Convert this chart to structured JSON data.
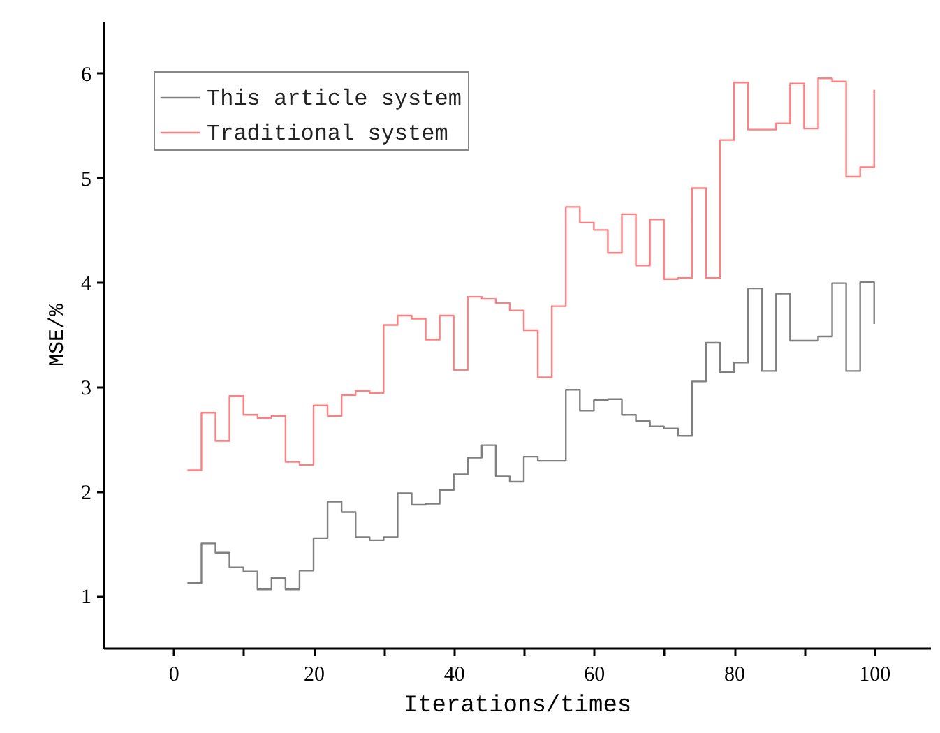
{
  "chart_data": {
    "type": "step",
    "xlabel": "Iterations/times",
    "ylabel": "MSE/%",
    "x": [
      2,
      4,
      6,
      8,
      10,
      12,
      14,
      16,
      18,
      20,
      22,
      24,
      26,
      28,
      30,
      32,
      34,
      36,
      38,
      40,
      42,
      44,
      46,
      48,
      50,
      52,
      54,
      56,
      58,
      60,
      62,
      64,
      66,
      68,
      70,
      72,
      74,
      76,
      78,
      80,
      82,
      84,
      86,
      88,
      90,
      92,
      94,
      96,
      98,
      100
    ],
    "series": [
      {
        "name": "This article system",
        "color": "#808080",
        "values": [
          1.12,
          1.5,
          1.41,
          1.27,
          1.23,
          1.06,
          1.17,
          1.06,
          1.24,
          1.55,
          1.9,
          1.8,
          1.56,
          1.53,
          1.56,
          1.98,
          1.87,
          1.88,
          2.01,
          2.16,
          2.32,
          2.44,
          2.14,
          2.09,
          2.33,
          2.29,
          2.29,
          2.97,
          2.77,
          2.87,
          2.88,
          2.73,
          2.67,
          2.62,
          2.6,
          2.53,
          3.05,
          3.42,
          3.14,
          3.23,
          3.94,
          3.15,
          3.89,
          3.44,
          3.44,
          3.48,
          3.99,
          3.15,
          4.0,
          3.6
        ]
      },
      {
        "name": "Traditional system",
        "color": "#ff8080",
        "values": [
          2.2,
          2.75,
          2.48,
          2.91,
          2.73,
          2.7,
          2.72,
          2.28,
          2.25,
          2.82,
          2.72,
          2.92,
          2.96,
          2.94,
          3.59,
          3.68,
          3.65,
          3.45,
          3.68,
          3.16,
          3.86,
          3.84,
          3.8,
          3.73,
          3.54,
          3.09,
          3.77,
          4.72,
          4.57,
          4.5,
          4.28,
          4.65,
          4.16,
          4.6,
          4.03,
          4.04,
          4.9,
          4.04,
          5.36,
          5.91,
          5.46,
          5.46,
          5.52,
          5.9,
          5.47,
          5.95,
          5.92,
          5.01,
          5.1,
          5.84
        ]
      }
    ],
    "xlim": [
      -10,
      108
    ],
    "xticks": [
      0,
      {
        "value": 10,
        "label": null
      },
      20,
      {
        "value": 30,
        "label": null
      },
      40,
      {
        "value": 50,
        "label": null
      },
      60,
      {
        "value": 70,
        "label": null
      },
      80,
      {
        "value": 90,
        "label": null
      },
      100
    ],
    "ylim": [
      0.5,
      6.5
    ],
    "yticks": [
      1,
      2,
      3,
      4,
      5,
      6
    ],
    "grid": false,
    "legend": "top left"
  }
}
